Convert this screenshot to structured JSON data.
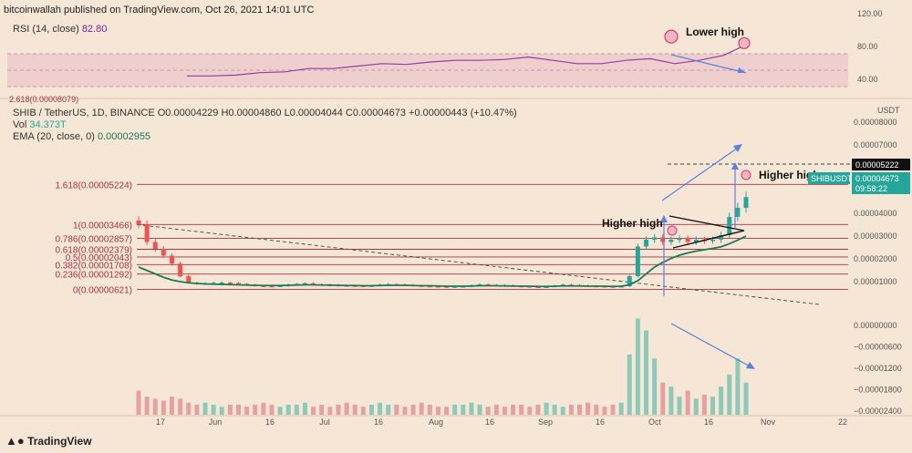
{
  "header": {
    "text": "bitcoinwallah published on TradingView.com, Oct 26, 2021 14:01 UTC"
  },
  "rsi_legend": {
    "label": "RSI (14, close)",
    "value": "82.80"
  },
  "symbol_line": {
    "pair": "SHIB / TetherUS, 1D, BINANCE",
    "ohlc": "O0.00004229 H0.00004860 L0.00004044 C0.00004673 +0.00000443 (+10.47%)"
  },
  "vol_line": {
    "label": "Vol",
    "value": "34.373T"
  },
  "ema_line": {
    "label": "EMA (20, close, 0)",
    "value": "0.00002955"
  },
  "footer": {
    "brand": "TradingView"
  },
  "colors": {
    "background": "#f6e6d6",
    "fib": "#a8324a",
    "ema": "#1b7a5a",
    "rsi": "#8e3fa0",
    "up": "#26a69a",
    "down": "#ef5350",
    "arrow": "#5c7fe0"
  },
  "chart_data": [
    {
      "type": "line",
      "name": "rsi",
      "ylim": [
        20,
        120
      ],
      "yticks": [
        "120.00",
        "80.00",
        "40.00"
      ],
      "band": [
        30,
        70
      ],
      "x": [
        0.08,
        0.12,
        0.16,
        0.2,
        0.24,
        0.28,
        0.32,
        0.36,
        0.4,
        0.44,
        0.48,
        0.52,
        0.56,
        0.6,
        0.64,
        0.68,
        0.72,
        0.76,
        0.8,
        0.84,
        0.88,
        0.92,
        0.96,
        1.0
      ],
      "values": [
        43,
        43,
        44,
        47,
        48,
        52,
        52,
        55,
        58,
        57,
        60,
        62,
        62,
        63,
        66,
        62,
        58,
        58,
        62,
        64,
        58,
        62,
        68,
        82
      ],
      "annotations": [
        {
          "text": "Lower high"
        }
      ],
      "circles": [
        91,
        83
      ]
    },
    {
      "type": "bar",
      "name": "candles",
      "x_tick_labels": [
        "17",
        "Jun",
        "16",
        "Jul",
        "16",
        "Aug",
        "16",
        "Sep",
        "16",
        "Oct",
        "16",
        "Nov",
        "22"
      ],
      "y_tick_labels": [
        "0.00008000",
        "0.00007000",
        "0.00006000",
        "0.00005000",
        "0.00004000",
        "0.00003000",
        "0.00002000",
        "0.00001000",
        "0.00000000",
        "−0.00000600",
        "−0.00001200",
        "−0.00001800",
        "−0.00002400"
      ],
      "y_unit": "USDT",
      "price_labels": [
        {
          "text": "0.00005222"
        },
        {
          "text": "SHIBUSDT"
        },
        {
          "text": "0.00004673"
        },
        {
          "text": "09:58:22"
        }
      ],
      "fib_levels": [
        {
          "label": "1.618(0.00005224)",
          "value": 5.224e-05
        },
        {
          "label": "1(0.00003466)",
          "value": 3.466e-05
        },
        {
          "label": "0.786(0.00002857)",
          "value": 2.857e-05
        },
        {
          "label": "0.618(0.00002379)",
          "value": 2.379e-05
        },
        {
          "label": "0.5(0.00002043)",
          "value": 2.043e-05
        },
        {
          "label": "0.382(0.00001708)",
          "value": 1.708e-05
        },
        {
          "label": "0.236(0.00001292)",
          "value": 1.292e-05
        },
        {
          "label": "0(0.00000621)",
          "value": 6.21e-06
        }
      ],
      "top_cut_label": "2.618(0.00008079)",
      "annotations": [
        {
          "text": "Higher high"
        },
        {
          "text": "Higher high"
        }
      ],
      "series": [
        {
          "name": "close",
          "values": [
            3.47e-05,
            2.7e-05,
            2.4e-05,
            2.1e-05,
            1.75e-05,
            1.2e-05,
            9.2e-06,
            8.6e-06,
            8.9e-06,
            9.1e-06,
            9.2e-06,
            9e-06,
            8.6e-06,
            8.2e-06,
            7.8e-06,
            7.7e-06,
            7.6e-06,
            7.8e-06,
            8.3e-06,
            8.6e-06,
            8.9e-06,
            8.4e-06,
            8.2e-06,
            8.1e-06,
            8e-06,
            7.9e-06,
            7.8e-06,
            7.7e-06,
            7.9e-06,
            8.3e-06,
            8.5e-06,
            8.4e-06,
            8.2e-06,
            7.9e-06,
            7.7e-06,
            7.6e-06,
            7.5e-06,
            7.4e-06,
            7.5e-06,
            7.6e-06,
            7.9e-06,
            8.4e-06,
            8.2e-06,
            8.1e-06,
            7.9e-06,
            7.7e-06,
            7.6e-06,
            7.4e-06,
            7.3e-06,
            7.4e-06,
            7.8e-06,
            8.3e-06,
            8.1e-06,
            7.9e-06,
            7.7e-06,
            7.6e-06,
            7.5e-06,
            7.4e-06,
            7.6e-06,
            1.2e-05,
            2.5e-05,
            2.8e-05,
            2.9e-05,
            2.7e-05,
            2.8e-05,
            2.85e-05,
            2.7e-05,
            2.8e-05,
            2.75e-05,
            2.8e-05,
            3e-05,
            3.8e-05,
            4.2e-05,
            4.67e-05
          ]
        },
        {
          "name": "ema",
          "values": [
            1.6e-05,
            1.45e-05,
            1.3e-05,
            1.15e-05,
            1.03e-05,
            9.6e-06,
            9.1e-06,
            8.8e-06,
            8.6e-06,
            8.5e-06,
            8.4e-06,
            8.3e-06,
            8.2e-06,
            8.1e-06,
            8e-06,
            7.9e-06,
            7.9e-06,
            7.9e-06,
            8e-06,
            8.1e-06,
            8.2e-06,
            8.2e-06,
            8.1e-06,
            8.1e-06,
            8e-06,
            7.9e-06,
            7.9e-06,
            7.8e-06,
            7.8e-06,
            7.9e-06,
            8e-06,
            8e-06,
            8e-06,
            7.9e-06,
            7.8e-06,
            7.8e-06,
            7.7e-06,
            7.6e-06,
            7.6e-06,
            7.6e-06,
            7.7e-06,
            7.8e-06,
            7.8e-06,
            7.8e-06,
            7.7e-06,
            7.7e-06,
            7.6e-06,
            7.6e-06,
            7.5e-06,
            7.5e-06,
            7.6e-06,
            7.7e-06,
            7.7e-06,
            7.7e-06,
            7.6e-06,
            7.6e-06,
            7.6e-06,
            7.5e-06,
            7.6e-06,
            8.2e-06,
            1e-05,
            1.3e-05,
            1.6e-05,
            1.8e-05,
            1.98e-05,
            2.12e-05,
            2.22e-05,
            2.3e-05,
            2.36e-05,
            2.42e-05,
            2.49e-05,
            2.62e-05,
            2.78e-05,
            2.955e-05
          ]
        },
        {
          "name": "volume",
          "values": [
            12,
            9,
            8,
            7,
            9,
            8,
            6,
            5,
            6,
            5,
            4,
            5,
            5,
            4,
            5,
            6,
            5,
            4,
            5,
            5,
            6,
            4,
            5,
            4,
            5,
            6,
            5,
            4,
            5,
            6,
            5,
            5,
            4,
            5,
            6,
            5,
            4,
            4,
            5,
            5,
            6,
            5,
            4,
            5,
            4,
            5,
            5,
            4,
            5,
            6,
            5,
            4,
            5,
            5,
            6,
            5,
            4,
            5,
            6,
            30,
            48,
            42,
            28,
            16,
            14,
            9,
            12,
            8,
            10,
            9,
            14,
            20,
            28,
            16
          ]
        }
      ]
    }
  ]
}
